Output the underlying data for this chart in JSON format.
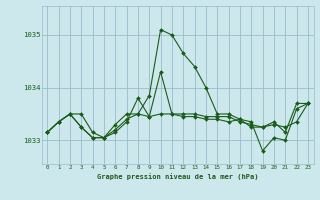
{
  "title": "Graphe pression niveau de la mer (hPa)",
  "bg_color": "#cce8ec",
  "grid_color": "#99bbcc",
  "line_color": "#1a5c1a",
  "x_ticks": [
    0,
    1,
    2,
    3,
    4,
    5,
    6,
    7,
    8,
    9,
    10,
    11,
    12,
    13,
    14,
    15,
    16,
    17,
    18,
    19,
    20,
    21,
    22,
    23
  ],
  "y_ticks": [
    1033,
    1034,
    1035
  ],
  "ylim": [
    1032.55,
    1035.55
  ],
  "xlim": [
    -0.5,
    23.5
  ],
  "series": [
    [
      1033.15,
      1033.35,
      1033.5,
      1033.5,
      1033.15,
      1033.05,
      1033.3,
      1033.5,
      1033.5,
      1033.85,
      1035.1,
      1035.0,
      1034.65,
      1034.4,
      1034.0,
      1033.5,
      1033.5,
      1033.4,
      1033.25,
      1033.25,
      1033.35,
      1033.15,
      1033.7,
      1033.7
    ],
    [
      1033.15,
      1033.35,
      1033.5,
      1033.25,
      1033.05,
      1033.05,
      1033.2,
      1033.4,
      1033.5,
      1033.45,
      1033.5,
      1033.5,
      1033.5,
      1033.5,
      1033.45,
      1033.45,
      1033.45,
      1033.35,
      1033.3,
      1033.25,
      1033.3,
      1033.25,
      1033.35,
      1033.7
    ],
    [
      1033.15,
      1033.35,
      1033.5,
      1033.25,
      1033.05,
      1033.05,
      1033.15,
      1033.35,
      1033.8,
      1033.45,
      1034.3,
      1033.5,
      1033.45,
      1033.45,
      1033.4,
      1033.4,
      1033.35,
      1033.4,
      1033.35,
      1032.8,
      1033.05,
      1033.0,
      1033.6,
      1033.7
    ]
  ]
}
